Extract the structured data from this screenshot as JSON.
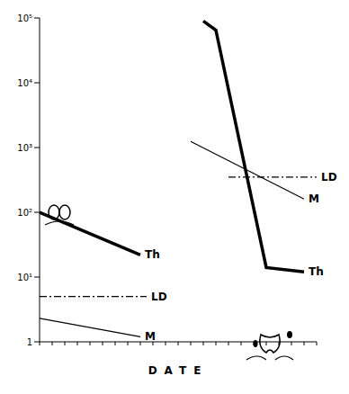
{
  "chart_data": {
    "type": "line",
    "x_label": "DATE",
    "log": "y",
    "tick_labels": "y",
    "xlim": [
      0,
      22
    ],
    "xticks": [
      0,
      1,
      2,
      3,
      4,
      5,
      6,
      7,
      8,
      9,
      10,
      11,
      12,
      13,
      14,
      15,
      16,
      17,
      18,
      19,
      20,
      21,
      22
    ],
    "ylim": [
      1,
      100000
    ],
    "yticks": [
      1,
      {
        "value": 10,
        "label": "10¹"
      },
      {
        "value": 100,
        "label": "10²"
      },
      {
        "value": 1000,
        "label": "10³"
      },
      {
        "value": 10000,
        "label": "10⁴"
      },
      {
        "value": 100000,
        "label": "10⁵"
      }
    ],
    "series": [
      {
        "name": "Th",
        "color": "#000000",
        "line_style": "thick",
        "x": [
          0,
          8
        ],
        "values": [
          100,
          22
        ]
      },
      {
        "name": "M",
        "color": "#000000",
        "line_style": "solid",
        "x": [
          0,
          8
        ],
        "values": [
          2.3,
          1.2
        ]
      },
      {
        "name": "LD",
        "color": "#000000",
        "line_style": "dashdot",
        "x": [
          0,
          8.5
        ],
        "values": [
          5,
          5
        ]
      },
      {
        "name": "Th",
        "color": "#000000",
        "line_style": "thick",
        "x": [
          13,
          14,
          18,
          21
        ],
        "values": [
          90000,
          65000,
          14,
          12
        ]
      },
      {
        "name": "M",
        "color": "#000000",
        "line_style": "solid",
        "x": [
          12,
          21
        ],
        "values": [
          1240,
          160
        ]
      },
      {
        "name": "LD",
        "color": "#000000",
        "line_style": "dashdot",
        "x": [
          15,
          22
        ],
        "values": [
          350,
          350
        ]
      }
    ]
  }
}
